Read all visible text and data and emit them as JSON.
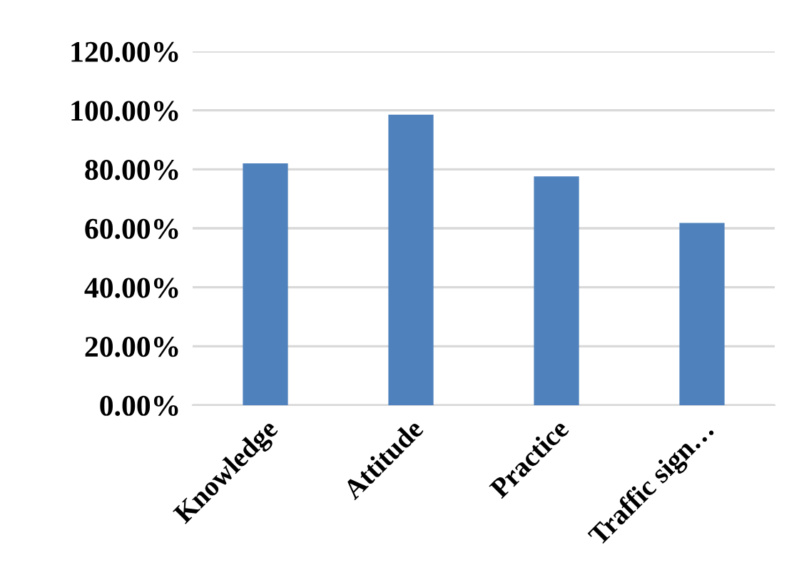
{
  "chart_data": {
    "type": "bar",
    "categories": [
      "Knowledge",
      "Attitude",
      "Practice",
      "Traffic sign…"
    ],
    "values": [
      82.0,
      98.5,
      77.6,
      61.8
    ],
    "color": "#4f81bd",
    "ylim": [
      0,
      120
    ],
    "yticks": [
      {
        "value": 0,
        "label": "0.00%"
      },
      {
        "value": 20,
        "label": "20.00%"
      },
      {
        "value": 40,
        "label": "40.00%"
      },
      {
        "value": 60,
        "label": "60.00%"
      },
      {
        "value": 80,
        "label": "80.00%"
      },
      {
        "value": 100,
        "label": "100.00%"
      },
      {
        "value": 120,
        "label": "120.00%"
      }
    ],
    "grid": "y"
  }
}
